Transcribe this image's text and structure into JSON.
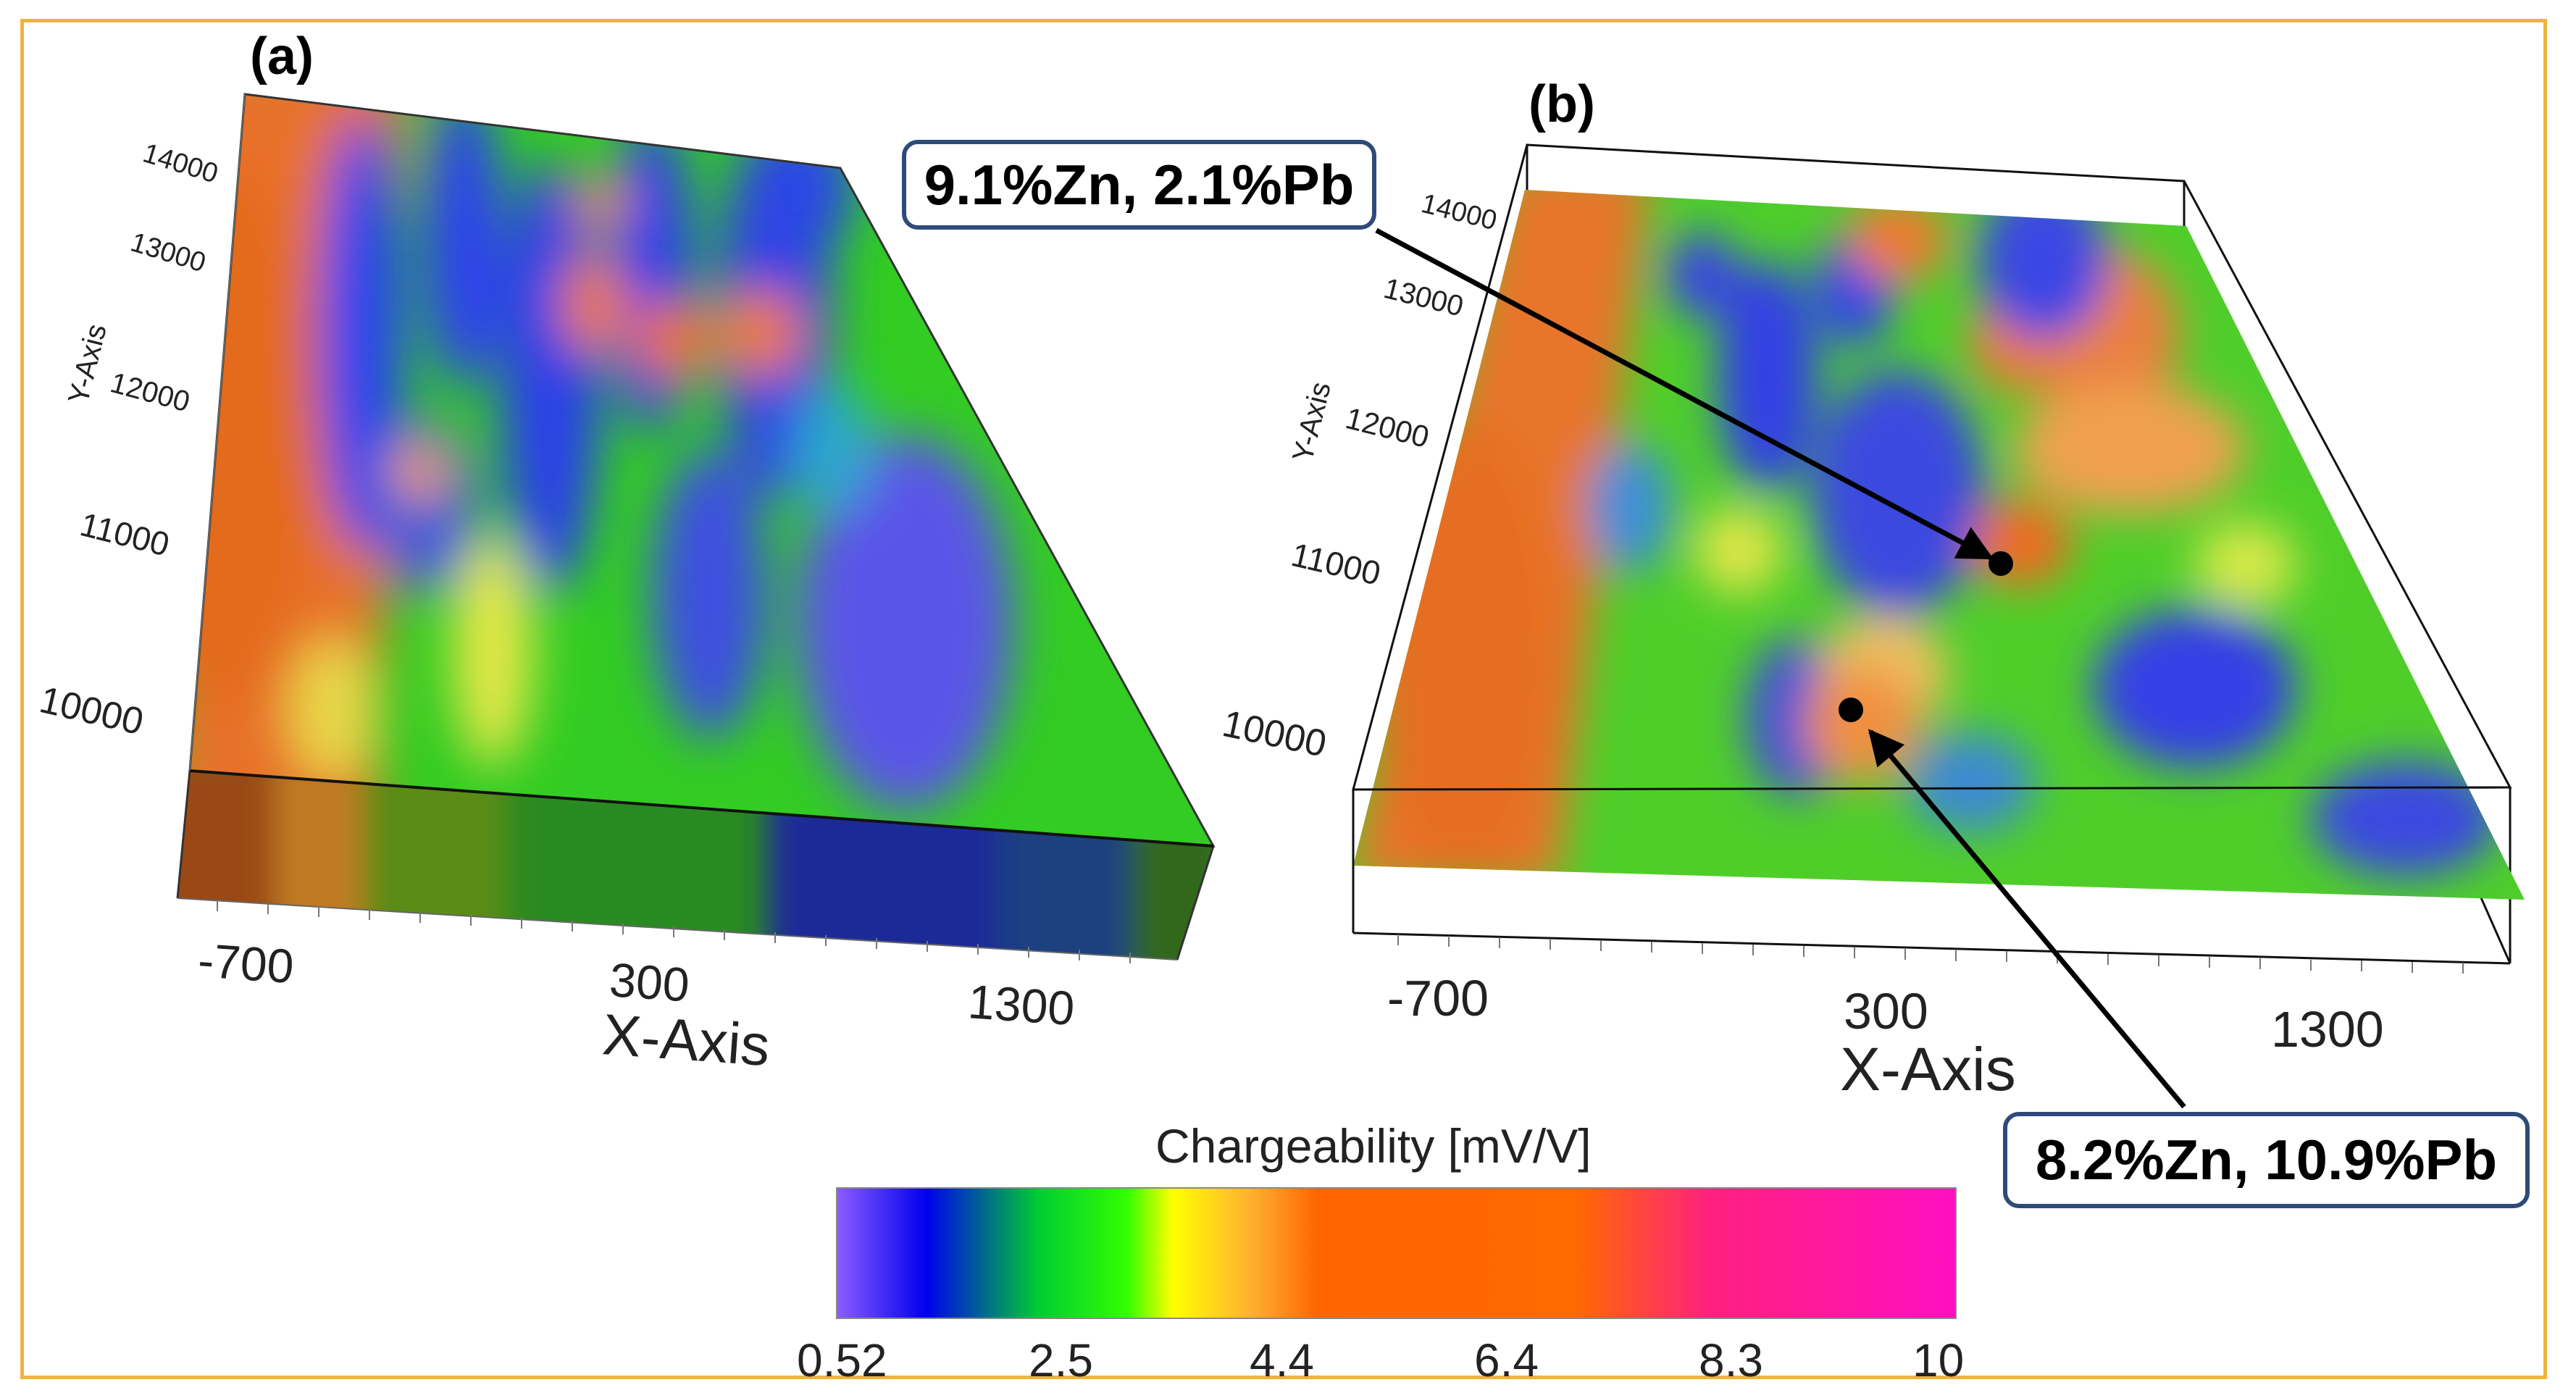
{
  "panels": [
    {
      "label": "(a)",
      "y_axis_label": "Y-Axis",
      "y_ticks": [
        "14000",
        "13000",
        "12000",
        "11000",
        "10000"
      ],
      "x_axis_label": "X-Axis",
      "x_ticks": [
        "-700",
        "300",
        "1300"
      ]
    },
    {
      "label": "(b)",
      "y_axis_label": "Y-Axis",
      "y_ticks": [
        "14000",
        "13000",
        "12000",
        "11000",
        "10000"
      ],
      "x_axis_label": "X-Axis",
      "x_ticks": [
        "-700",
        "300",
        "1300"
      ],
      "annotations": [
        "9.1%Zn, 2.1%Pb",
        "8.2%Zn, 10.9%Pb"
      ]
    }
  ],
  "colorbar": {
    "title": "Chargeability [mV/V]",
    "ticks": [
      "0.52",
      "2.5",
      "4.4",
      "6.4",
      "8.3",
      "10"
    ],
    "colors": [
      "#8c5cff",
      "#0000ee",
      "#00cc33",
      "#33ff00",
      "#ffff00",
      "#ffb030",
      "#ff6600",
      "#ff6a00",
      "#ff2080",
      "#ff10c0"
    ]
  }
}
